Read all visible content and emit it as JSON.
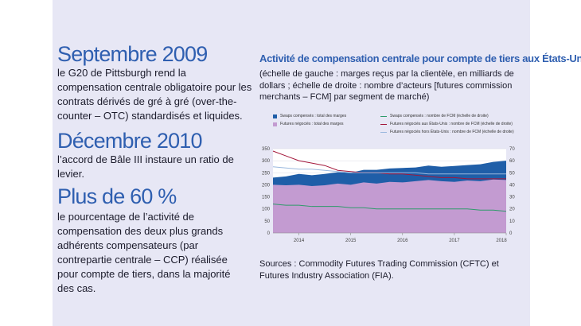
{
  "facts": [
    {
      "heading": "Septembre 2009",
      "text": "le G20 de Pittsburgh rend la compensation centrale obligatoire pour les contrats dérivés de gré à gré (over-the-counter – OTC) standardisés et liquides."
    },
    {
      "heading": "Décembre 2010",
      "text": "l’accord de Bâle III instaure un ratio de levier."
    },
    {
      "heading": "Plus de 60 %",
      "text": "le pourcentage de l’activité de compensation des deux plus grands adhérents compensateurs (par contrepartie centrale – CCP) réalisée pour compte de tiers, dans la majorité des cas."
    }
  ],
  "chart": {
    "title": "Activité de compensation centrale pour compte de tiers aux États-Unis",
    "subtitle": "(échelle de gauche : marges reçus par la clientèle, en milliards de dollars ; échelle de droite : nombre d’acteurs [futures commission merchants – FCM] par segment de marché)",
    "sources": "Sources : Commodity Futures Trading Commission (CFTC) et Futures Industry Association (FIA)."
  },
  "colors": {
    "accent": "#2f5fb0",
    "swaps": "#1f5ea8",
    "futures": "#c39bd1",
    "green": "#2e9b6a",
    "red": "#a3163a",
    "lightblue": "#9ab8de",
    "panel": "#e7e7f5"
  },
  "chart_data": {
    "type": "area",
    "x": [
      2013.5,
      2013.75,
      2014.0,
      2014.25,
      2014.5,
      2014.75,
      2015.0,
      2015.25,
      2015.5,
      2015.75,
      2016.0,
      2016.25,
      2016.5,
      2016.75,
      2017.0,
      2017.25,
      2017.5,
      2017.75,
      2018.0
    ],
    "series": [
      {
        "name": "Futures négociés : total des marges",
        "axis": "left",
        "values": [
          200,
          198,
          200,
          195,
          198,
          205,
          200,
          210,
          205,
          212,
          210,
          215,
          220,
          215,
          212,
          218,
          215,
          222,
          220
        ]
      },
      {
        "name": "Swaps compensés : total des marges",
        "axis": "left",
        "values": [
          230,
          235,
          245,
          240,
          245,
          252,
          250,
          262,
          262,
          268,
          270,
          272,
          280,
          275,
          278,
          282,
          285,
          295,
          300
        ]
      },
      {
        "name": "Swaps compensés : nombre de FCM (échelle de droite)",
        "axis": "right",
        "values": [
          24,
          23,
          23,
          22,
          22,
          22,
          21,
          21,
          20,
          20,
          20,
          20,
          20,
          20,
          20,
          20,
          19,
          19,
          18
        ]
      },
      {
        "name": "Futures négociés aux États-Unis : nombre de FCM (échelle de droite)",
        "axis": "right",
        "values": [
          68,
          64,
          60,
          58,
          56,
          52,
          51,
          50,
          50,
          49,
          49,
          48,
          47,
          46,
          46,
          45,
          45,
          45,
          45
        ]
      },
      {
        "name": "Futures négociés hors États-Unis : nombre de FCM (échelle de droite)",
        "axis": "right",
        "values": [
          55,
          54,
          53,
          53,
          52,
          51,
          50,
          50,
          50,
          50,
          50,
          50,
          49,
          49,
          49,
          49,
          49,
          49,
          49
        ]
      }
    ],
    "legend": [
      "Swaps compensés : total des marges",
      "Futures négociés : total des marges",
      "Swaps compensés : nombre de FCM (échelle de droite)",
      "Futures négociés aux États-Unis : nombre de FCM (échelle de droite)",
      "Futures négociés hors États-Unis : nombre de FCM (échelle de droite)"
    ],
    "x_ticks": [
      "2014",
      "2015",
      "2016",
      "2017",
      "2018"
    ],
    "x_tick_values": [
      2014,
      2015,
      2016,
      2017,
      2018
    ],
    "xlim": [
      2013.5,
      2018.0
    ],
    "y_left_ticks": [
      0,
      50,
      100,
      150,
      200,
      250,
      300,
      350
    ],
    "ylim_left": [
      0,
      350
    ],
    "y_right_ticks": [
      0,
      10,
      20,
      30,
      40,
      50,
      60,
      70
    ],
    "ylim_right": [
      0,
      70
    ],
    "grid": true
  }
}
